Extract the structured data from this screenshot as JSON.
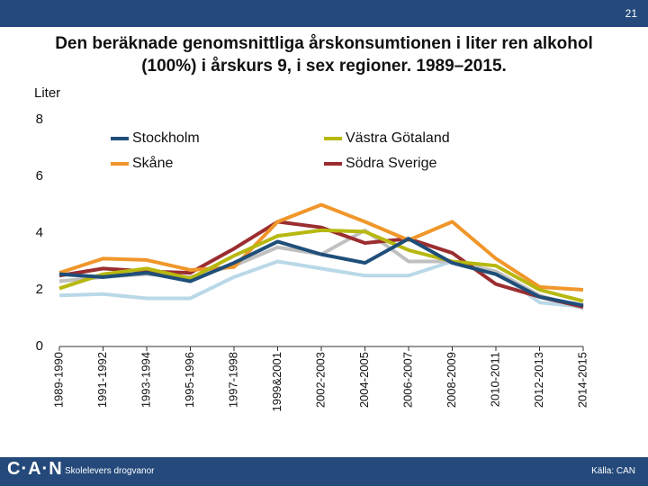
{
  "page_number": "21",
  "footer": {
    "logo": "C·A·N",
    "text": "Skolelevers drogvanor",
    "source": "Källa: CAN"
  },
  "chart_data": {
    "type": "line",
    "title": "Den beräknade genomsnittliga årskonsumtionen i liter ren alkohol (100%) i årskurs 9, i sex regioner. 1989–2015.",
    "ylabel": "Liter",
    "categories": [
      "1989-1990",
      "1991-1992",
      "1993-1994",
      "1995-1996",
      "1997-1998",
      "1999&2001",
      "2002-2003",
      "2004-2005",
      "2006-2007",
      "2008-2009",
      "2010-2011",
      "2012-2013",
      "2014-2015"
    ],
    "ylim": [
      0,
      8
    ],
    "yticks": [
      0,
      2,
      4,
      6,
      8
    ],
    "series": [
      {
        "name": "Stockholm",
        "color": "#1f4e79",
        "values": [
          2.55,
          2.45,
          2.6,
          2.3,
          2.95,
          3.7,
          3.25,
          2.95,
          3.8,
          2.95,
          2.55,
          1.75,
          1.45
        ]
      },
      {
        "name": "Västra Götaland",
        "color": "#b7b80f",
        "values": [
          2.05,
          2.55,
          2.75,
          2.4,
          3.2,
          3.9,
          4.1,
          4.05,
          3.4,
          3.0,
          2.85,
          2.0,
          1.6
        ]
      },
      {
        "name": "Skåne",
        "color": "#f0962a",
        "values": [
          2.6,
          3.1,
          3.05,
          2.7,
          2.8,
          4.4,
          5.0,
          4.4,
          3.75,
          4.4,
          3.1,
          2.1,
          2.0
        ]
      },
      {
        "name": "Södra Sverige",
        "color": "#9b2d30",
        "values": [
          2.5,
          2.75,
          2.65,
          2.6,
          3.45,
          4.4,
          4.2,
          3.65,
          3.8,
          3.3,
          2.2,
          1.75,
          1.4
        ]
      },
      {
        "color": "#c0c0c0",
        "values": [
          2.3,
          2.45,
          2.55,
          2.45,
          2.85,
          3.5,
          3.25,
          4.1,
          3.0,
          3.0,
          2.65,
          1.8,
          1.35
        ]
      },
      {
        "color": "#b9d8e8",
        "values": [
          1.8,
          1.85,
          1.7,
          1.7,
          2.45,
          3.0,
          2.75,
          2.5,
          2.5,
          3.0,
          2.65,
          1.55,
          1.4
        ]
      }
    ]
  }
}
